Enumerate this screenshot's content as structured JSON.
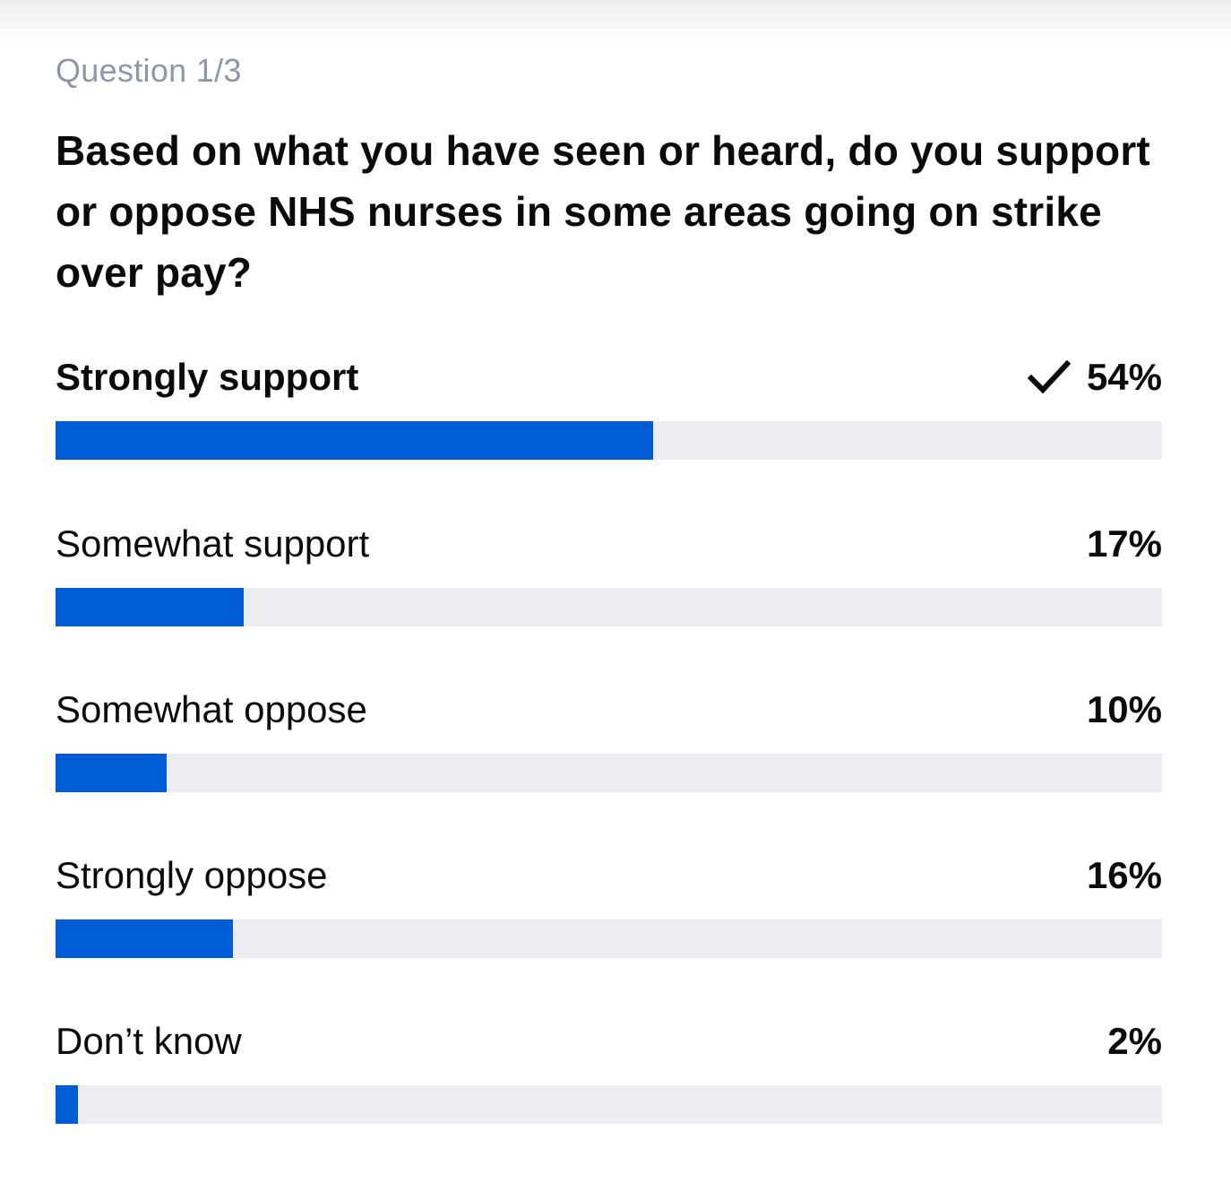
{
  "quiz": {
    "progress_label": "Question 1/3",
    "question": "Based on what you have seen or heard, do you support or oppose NHS nurses in some areas going on strike over pay?"
  },
  "colors": {
    "bar_fill": "#005bd6",
    "bar_track": "#ececf1",
    "progress_text": "#8c97aa"
  },
  "options": [
    {
      "label": "Strongly support",
      "percent_label": "54%",
      "value": 54,
      "selected": true,
      "icon": "checkmark-icon"
    },
    {
      "label": "Somewhat support",
      "percent_label": "17%",
      "value": 17,
      "selected": false
    },
    {
      "label": "Somewhat oppose",
      "percent_label": "10%",
      "value": 10,
      "selected": false
    },
    {
      "label": "Strongly oppose",
      "percent_label": "16%",
      "value": 16,
      "selected": false
    },
    {
      "label": "Don’t know",
      "percent_label": "2%",
      "value": 2,
      "selected": false
    }
  ]
}
